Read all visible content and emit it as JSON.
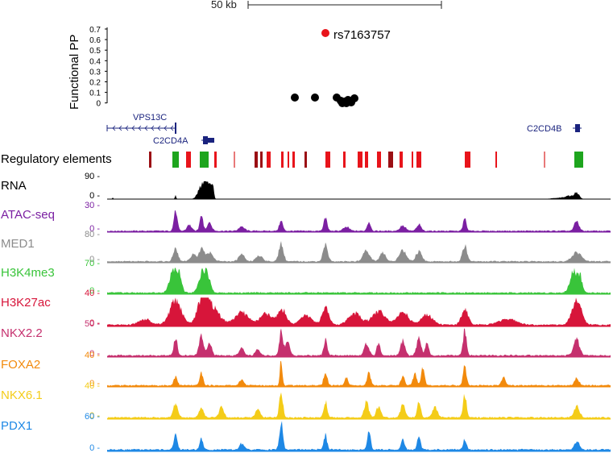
{
  "scale_bar": {
    "label": "50 kb"
  },
  "functional_pp": {
    "axis_label": "Functional PP",
    "ticks": [
      "0.7",
      "0.6",
      "0.5",
      "0.4",
      "0.3",
      "0.2",
      "0.1",
      "0"
    ],
    "highlight_snp": "rs7163757",
    "highlight_color": "#e8141b",
    "point_color": "#000000"
  },
  "genes": {
    "color": "#1a237e",
    "labels": [
      "VPS13C",
      "C2CD4A",
      "C2CD4B"
    ]
  },
  "regulatory": {
    "label": "Regulatory elements",
    "colors": [
      "#e8141b",
      "#9b0f14",
      "#e87979",
      "#1ea51e"
    ]
  },
  "tracks": [
    {
      "name": "RNA",
      "max": "90 -",
      "zero": "0 -",
      "color": "#000000"
    },
    {
      "name": "ATAC-seq",
      "max": "30 -",
      "zero": "0 -",
      "color": "#7b1fa2"
    },
    {
      "name": "MED1",
      "max": "80 -",
      "zero": "0 -",
      "color": "#8c8c8c"
    },
    {
      "name": "H3K4me3",
      "max": "70 -",
      "zero": "0 -",
      "color": "#39c43a"
    },
    {
      "name": "H3K27ac",
      "max": "40 -",
      "zero": "0 -",
      "color": "#d7153a"
    },
    {
      "name": "NKX2.2",
      "max": "50 -",
      "zero": "0 -",
      "color": "#c5306e"
    },
    {
      "name": "FOXA2",
      "max": "40 -",
      "zero": "0 -",
      "color": "#f28a0c"
    },
    {
      "name": "NKX6.1",
      "max": "40 -",
      "zero": "0 -",
      "color": "#f4cc18"
    },
    {
      "name": "PDX1",
      "max": "60 -",
      "zero": "0 -",
      "color": "#1e88e5"
    }
  ]
}
